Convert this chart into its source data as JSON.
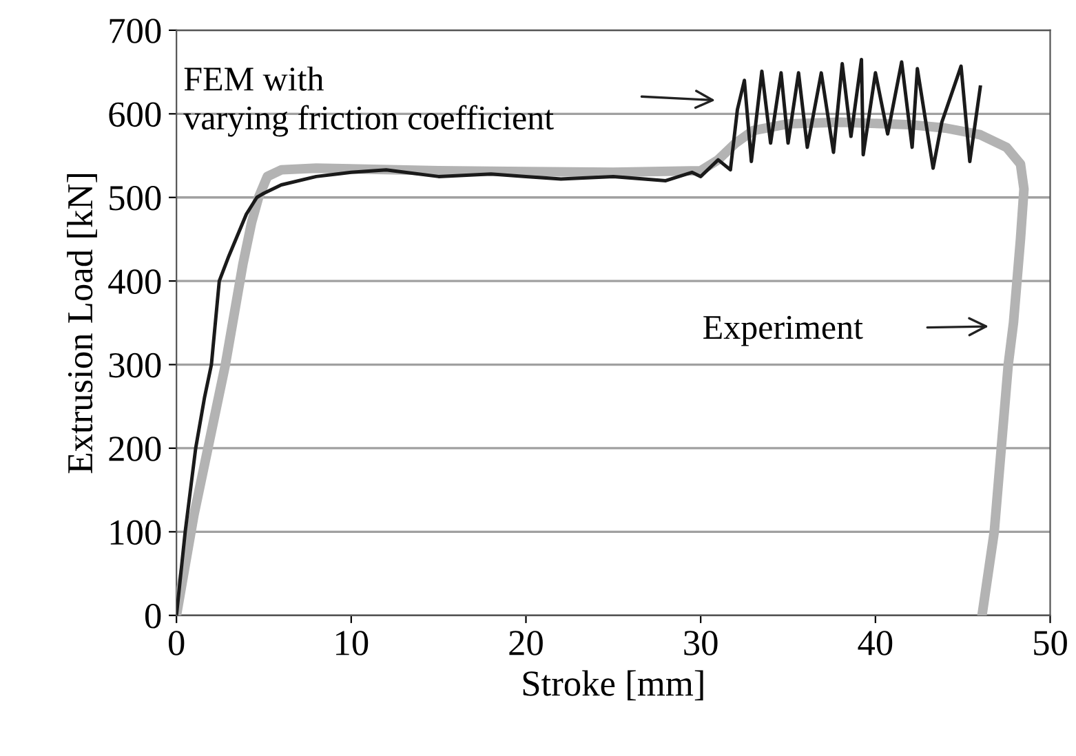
{
  "chart_data": {
    "type": "line",
    "xlabel": "Stroke [mm]",
    "ylabel": "Extrusion Load [kN]",
    "xlim": [
      0,
      50
    ],
    "ylim": [
      0,
      700
    ],
    "xticks": [
      0,
      10,
      20,
      30,
      40,
      50
    ],
    "yticks": [
      0,
      100,
      200,
      300,
      400,
      500,
      600,
      700
    ],
    "grid": "y",
    "legend": false,
    "marker": "none",
    "line_style": "solid",
    "series": [
      {
        "color": "#b3b3b3",
        "x": [
          0,
          0.5,
          1,
          1.8,
          2.3,
          2.8,
          3.3,
          3.8,
          4.3,
          4.7,
          5.2,
          6,
          8,
          15,
          25,
          30,
          31,
          32,
          33,
          35,
          38,
          42,
          44,
          46,
          47.5,
          48.3,
          48.5,
          48.3,
          47.9,
          47.6,
          47.2,
          46.8,
          46.1
        ],
        "values": [
          0,
          60,
          120,
          200,
          250,
          300,
          360,
          420,
          470,
          500,
          525,
          533,
          535,
          532,
          530,
          532,
          545,
          565,
          580,
          588,
          590,
          587,
          583,
          575,
          560,
          540,
          510,
          450,
          350,
          300,
          200,
          100,
          0
        ]
      },
      {
        "color": "#1a1a1a",
        "x": [
          0,
          0.5,
          1.1,
          1.6,
          2.0,
          2.45,
          3,
          4,
          4.6,
          5,
          6,
          8,
          10,
          12,
          15,
          18,
          20,
          22,
          25,
          28,
          29.5,
          30,
          31,
          31.7,
          32.1,
          32.5,
          32.9,
          33.5,
          34.0,
          34.6,
          35.0,
          35.6,
          36.1,
          36.9,
          37.6,
          38.1,
          38.6,
          39.2,
          39.3,
          40.0,
          40.7,
          41.5,
          42.1,
          42.4,
          43.3,
          43.8,
          44.9,
          45.4,
          46.0
        ],
        "values": [
          0,
          100,
          200,
          260,
          300,
          400,
          430,
          480,
          500,
          505,
          515,
          525,
          530,
          533,
          525,
          528,
          525,
          522,
          525,
          520,
          530,
          525,
          545,
          533,
          605,
          640,
          543,
          651,
          565,
          649,
          565,
          649,
          560,
          649,
          554,
          660,
          573,
          665,
          551,
          649,
          576,
          662,
          560,
          654,
          535,
          590,
          657,
          543,
          632
        ]
      }
    ],
    "annotations": [
      "FEM with\nvarying friction coefficient",
      "Experiment"
    ]
  }
}
